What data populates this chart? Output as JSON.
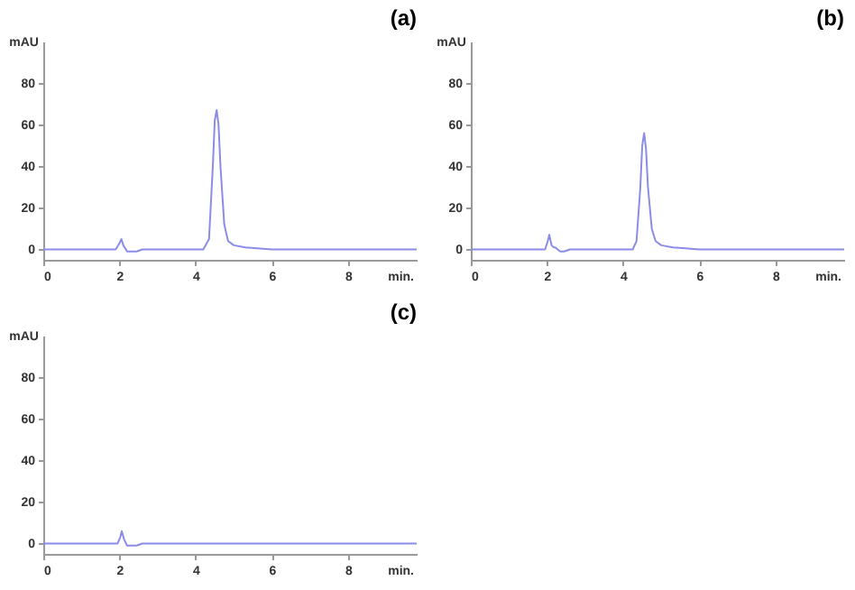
{
  "chart_data": [
    {
      "type": "line",
      "title": "(a)",
      "xlabel": "min.",
      "ylabel": "mAU",
      "xlim": [
        0,
        9.8
      ],
      "xticks": [
        0,
        2,
        4,
        6,
        8
      ],
      "ylim": [
        -5,
        100
      ],
      "yticks": [
        0,
        20,
        40,
        60,
        80
      ],
      "grid": false,
      "x": [
        0,
        1.9,
        2.0,
        2.05,
        2.1,
        2.2,
        2.3,
        2.45,
        2.6,
        4.2,
        4.35,
        4.45,
        4.5,
        4.55,
        4.6,
        4.65,
        4.75,
        4.85,
        5.0,
        5.3,
        6,
        9.8
      ],
      "series": [
        {
          "color": "#8c8ce8",
          "values": [
            0,
            0,
            3,
            5,
            2,
            -1,
            -1,
            -1,
            0,
            0,
            5,
            40,
            62,
            67,
            60,
            40,
            12,
            4,
            2,
            1,
            0,
            0
          ]
        }
      ]
    },
    {
      "type": "line",
      "title": "(b)",
      "xlabel": "min.",
      "ylabel": "mAU",
      "xlim": [
        0,
        9.8
      ],
      "xticks": [
        0,
        2,
        4,
        6,
        8
      ],
      "ylim": [
        -5,
        100
      ],
      "yticks": [
        0,
        20,
        40,
        60,
        80
      ],
      "grid": false,
      "x": [
        0,
        1.95,
        2.02,
        2.06,
        2.12,
        2.18,
        2.22,
        2.28,
        2.35,
        2.45,
        2.6,
        4.25,
        4.35,
        4.45,
        4.5,
        4.55,
        4.6,
        4.65,
        4.75,
        4.85,
        5.0,
        5.3,
        6,
        9.8
      ],
      "series": [
        {
          "color": "#8c8ce8",
          "values": [
            0,
            0,
            4,
            7,
            2,
            1,
            1,
            0,
            -1,
            -1,
            0,
            0,
            4,
            30,
            50,
            56,
            48,
            30,
            10,
            4,
            2,
            1,
            0,
            0
          ]
        }
      ]
    },
    {
      "type": "line",
      "title": "(c)",
      "xlabel": "min.",
      "ylabel": "mAU",
      "xlim": [
        0,
        9.8
      ],
      "xticks": [
        0,
        2,
        4,
        6,
        8
      ],
      "ylim": [
        -5,
        100
      ],
      "yticks": [
        0,
        20,
        40,
        60,
        80
      ],
      "grid": false,
      "x": [
        0,
        1.95,
        2.02,
        2.06,
        2.12,
        2.2,
        2.3,
        2.45,
        2.6,
        9.8
      ],
      "series": [
        {
          "color": "#8c8ce8",
          "values": [
            0,
            0,
            3,
            6,
            2,
            -1,
            -1,
            -1,
            0,
            0
          ]
        }
      ]
    }
  ]
}
